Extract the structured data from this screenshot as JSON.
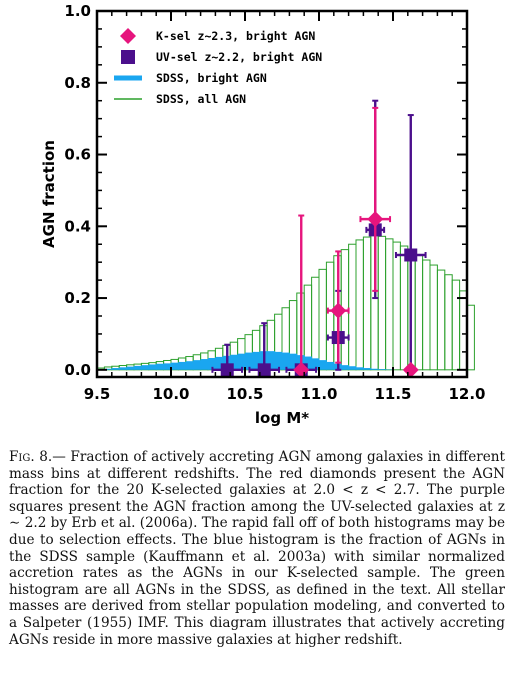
{
  "chart_data": {
    "type": "bar",
    "xlabel": "log M*",
    "ylabel": "AGN fraction",
    "xlim": [
      9.5,
      12.0
    ],
    "ylim": [
      -0.02,
      1.0
    ],
    "x_ticks": [
      "9.5",
      "10.0",
      "10.5",
      "11.0",
      "11.5",
      "12.0"
    ],
    "y_ticks": [
      "0.0",
      "0.2",
      "0.4",
      "0.6",
      "0.8",
      "1.0"
    ],
    "legend_position": "top-left",
    "colors": {
      "kselect": "#e6157d",
      "uvselect": "#4b0f8c",
      "sdss_bright": "#1aa6f0",
      "sdss_all": "#2ca02c"
    },
    "series": [
      {
        "name": "K-sel z~2.3, bright AGN",
        "kind": "points",
        "marker": "diamond",
        "points": [
          {
            "x": 10.88,
            "y": 0.0,
            "xerr": 0.0,
            "ylo": 0.0,
            "yhi": 0.43
          },
          {
            "x": 11.13,
            "y": 0.165,
            "xerr": 0.07,
            "ylo": 0.02,
            "yhi": 0.33
          },
          {
            "x": 11.38,
            "y": 0.42,
            "xerr": 0.1,
            "ylo": 0.22,
            "yhi": 0.73
          },
          {
            "x": 11.62,
            "y": 0.0,
            "xerr": 0.0,
            "ylo": 0.0,
            "yhi": 0.0
          }
        ]
      },
      {
        "name": "UV-sel z~2.2, bright AGN",
        "kind": "points",
        "marker": "square",
        "points": [
          {
            "x": 10.38,
            "y": 0.0,
            "xerr": 0.1,
            "ylo": 0.0,
            "yhi": 0.07
          },
          {
            "x": 10.63,
            "y": 0.0,
            "xerr": 0.1,
            "ylo": 0.0,
            "yhi": 0.13
          },
          {
            "x": 10.88,
            "y": 0.0,
            "xerr": 0.1,
            "ylo": 0.0,
            "yhi": 0.0
          },
          {
            "x": 11.13,
            "y": 0.09,
            "xerr": 0.07,
            "ylo": 0.0,
            "yhi": 0.22
          },
          {
            "x": 11.38,
            "y": 0.39,
            "xerr": 0.06,
            "ylo": 0.2,
            "yhi": 0.75
          },
          {
            "x": 11.62,
            "y": 0.32,
            "xerr": 0.1,
            "ylo": 0.0,
            "yhi": 0.71
          }
        ]
      },
      {
        "name": "SDSS, bright AGN",
        "kind": "filled-histogram",
        "x": [
          9.5,
          9.55,
          9.6,
          9.65,
          9.7,
          9.75,
          9.8,
          9.85,
          9.9,
          9.95,
          10.0,
          10.05,
          10.1,
          10.15,
          10.2,
          10.25,
          10.3,
          10.35,
          10.4,
          10.45,
          10.5,
          10.55,
          10.6,
          10.65,
          10.7,
          10.75,
          10.8,
          10.85,
          10.9,
          10.95,
          11.0,
          11.05,
          11.1,
          11.15,
          11.2,
          11.25,
          11.3,
          11.35,
          11.4,
          11.45,
          11.5,
          11.55,
          11.6,
          11.65,
          11.7,
          11.75,
          11.8,
          11.85,
          11.9,
          11.95,
          12.0
        ],
        "values": [
          0.0,
          0.003,
          0.005,
          0.007,
          0.009,
          0.011,
          0.013,
          0.015,
          0.017,
          0.018,
          0.02,
          0.022,
          0.024,
          0.027,
          0.03,
          0.033,
          0.036,
          0.039,
          0.042,
          0.045,
          0.048,
          0.05,
          0.052,
          0.052,
          0.05,
          0.048,
          0.045,
          0.041,
          0.037,
          0.032,
          0.027,
          0.022,
          0.017,
          0.013,
          0.01,
          0.007,
          0.005,
          0.003,
          0.002,
          0.001,
          0.0,
          0.0,
          0.0,
          0.0,
          0.0,
          0.0,
          0.0,
          0.0,
          0.0,
          0.0,
          0.0
        ]
      },
      {
        "name": "SDSS, all AGN",
        "kind": "outline-histogram",
        "x": [
          9.5,
          9.55,
          9.6,
          9.65,
          9.7,
          9.75,
          9.8,
          9.85,
          9.9,
          9.95,
          10.0,
          10.05,
          10.1,
          10.15,
          10.2,
          10.25,
          10.3,
          10.35,
          10.4,
          10.45,
          10.5,
          10.55,
          10.6,
          10.65,
          10.7,
          10.75,
          10.8,
          10.85,
          10.9,
          10.95,
          11.0,
          11.05,
          11.1,
          11.15,
          11.2,
          11.25,
          11.3,
          11.35,
          11.4,
          11.45,
          11.5,
          11.55,
          11.6,
          11.65,
          11.7,
          11.75,
          11.8,
          11.85,
          11.9,
          11.95,
          12.0
        ],
        "values": [
          0.005,
          0.008,
          0.01,
          0.012,
          0.014,
          0.016,
          0.018,
          0.02,
          0.023,
          0.026,
          0.029,
          0.033,
          0.037,
          0.042,
          0.047,
          0.053,
          0.06,
          0.068,
          0.077,
          0.087,
          0.098,
          0.11,
          0.123,
          0.138,
          0.155,
          0.173,
          0.193,
          0.214,
          0.236,
          0.258,
          0.28,
          0.3,
          0.318,
          0.335,
          0.35,
          0.362,
          0.37,
          0.375,
          0.372,
          0.365,
          0.356,
          0.345,
          0.332,
          0.32,
          0.306,
          0.292,
          0.278,
          0.265,
          0.25,
          0.22,
          0.18
        ]
      }
    ]
  },
  "caption": {
    "label": "Fig.",
    "number": "8.—",
    "text": "Fraction of actively accreting AGN among galaxies in different mass bins at different redshifts. The red diamonds present the AGN fraction for the 20 K-selected galaxies at 2.0 < z < 2.7. The purple squares present the AGN fraction among the UV-selected galaxies at z ∼ 2.2 by Erb et al. (2006a). The rapid fall off of both histograms may be due to selection effects. The blue histogram is the fraction of AGNs in the SDSS sample (Kauffmann et al. 2003a) with similar normalized accretion rates as the AGNs in our K-selected sample. The green histogram are all AGNs in the SDSS, as defined in the text. All stellar masses are derived from stellar population modeling, and converted to a Salpeter (1955) IMF. This diagram illustrates that actively accreting AGNs reside in more massive galaxies at higher redshift."
  }
}
